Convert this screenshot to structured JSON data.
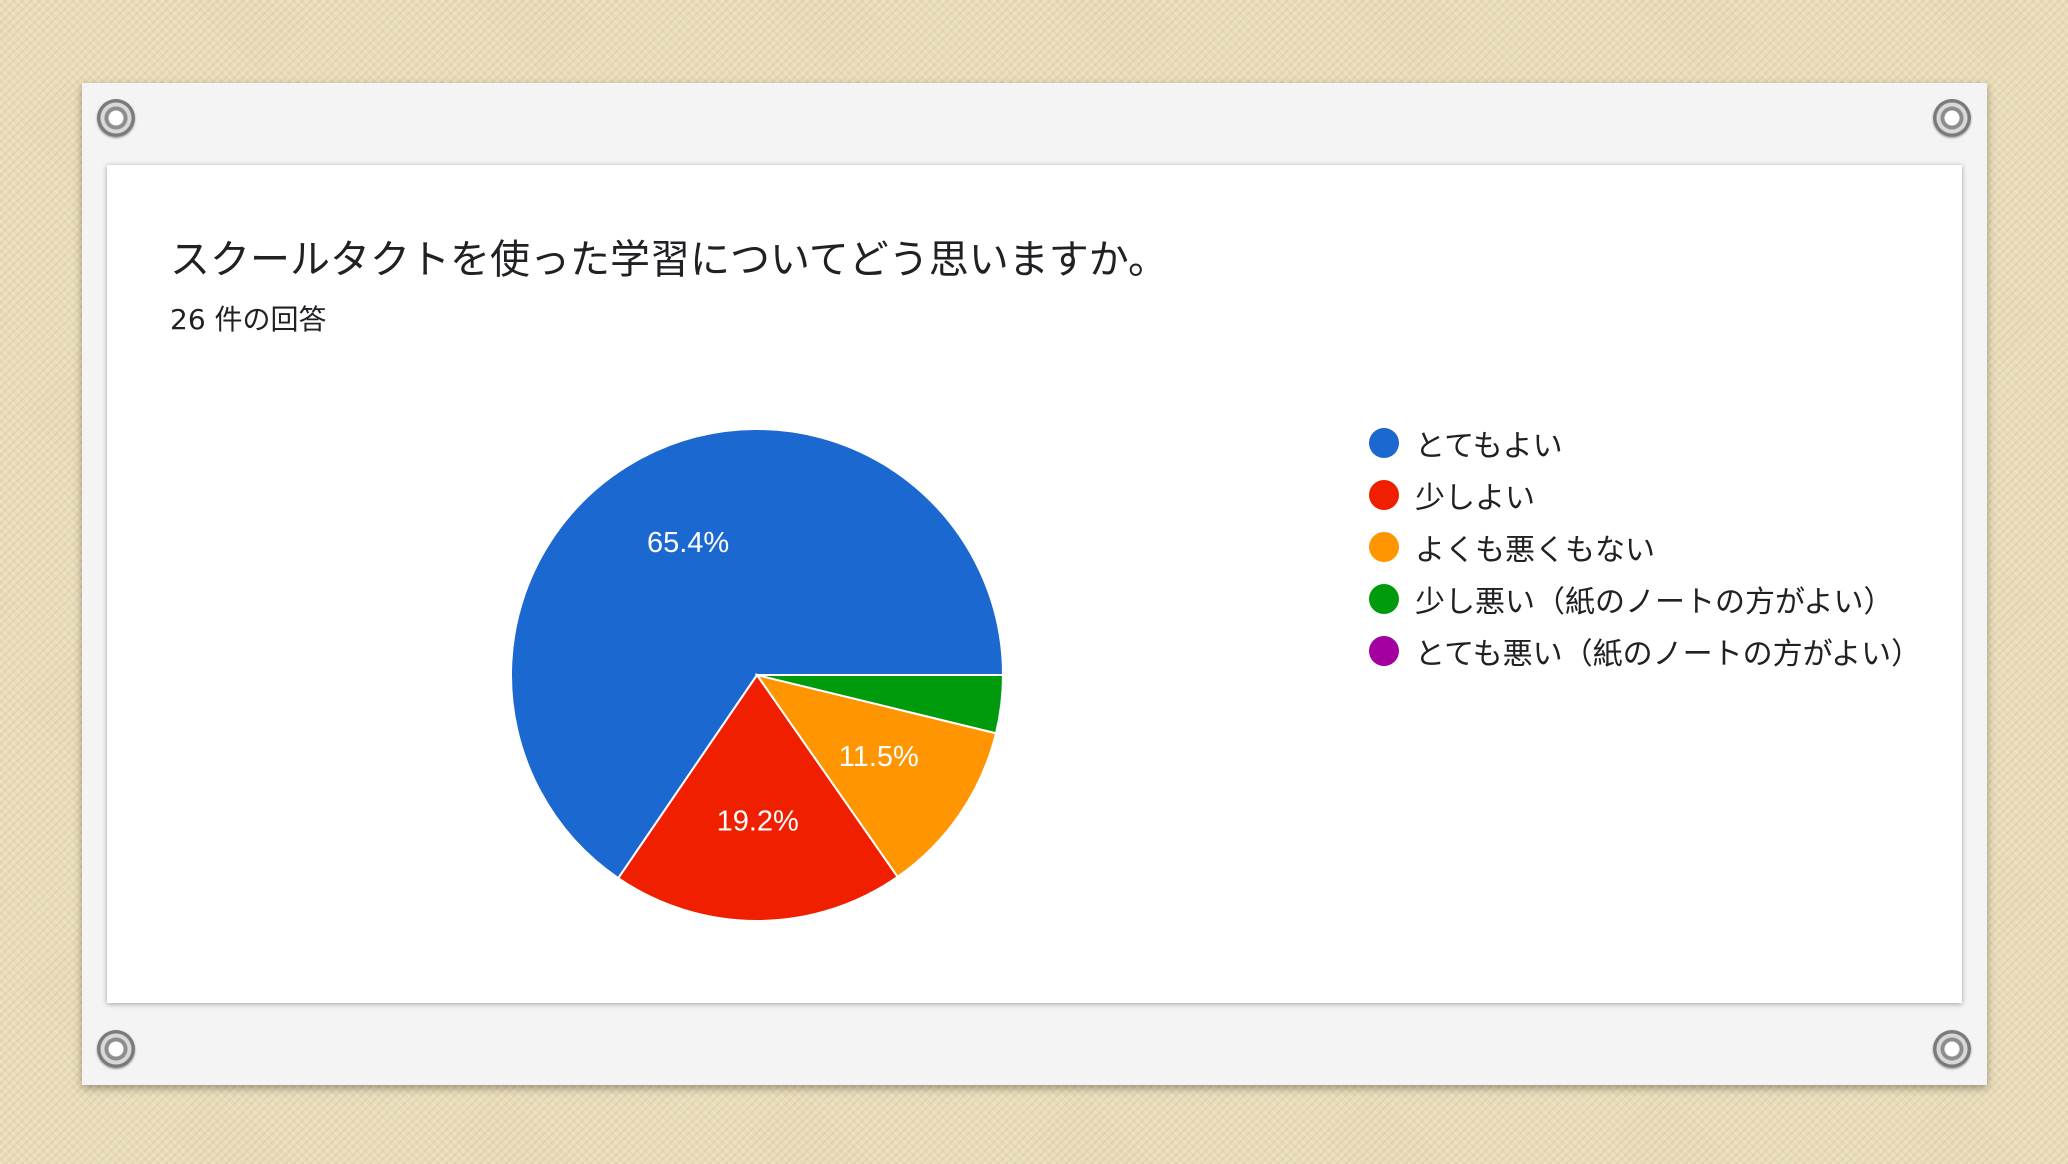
{
  "chart_data": {
    "type": "pie",
    "title": "スクールタクトを使った学習についてどう思いますか。",
    "subtitle": "26 件の回答",
    "categories": [
      "とてもよい",
      "少しよい",
      "よくも悪くもない",
      "少し悪い（紙のノートの方がよい）",
      "とても悪い（紙のノートの方がよい）"
    ],
    "values": [
      65.4,
      19.2,
      11.5,
      3.8,
      0
    ],
    "data_labels": [
      "65.4%",
      "19.2%",
      "11.5%",
      "",
      ""
    ],
    "colors": [
      "#1c68d1",
      "#ef1f00",
      "#ff9500",
      "#009b0d",
      "#a3009f"
    ],
    "legend_position": "right"
  }
}
